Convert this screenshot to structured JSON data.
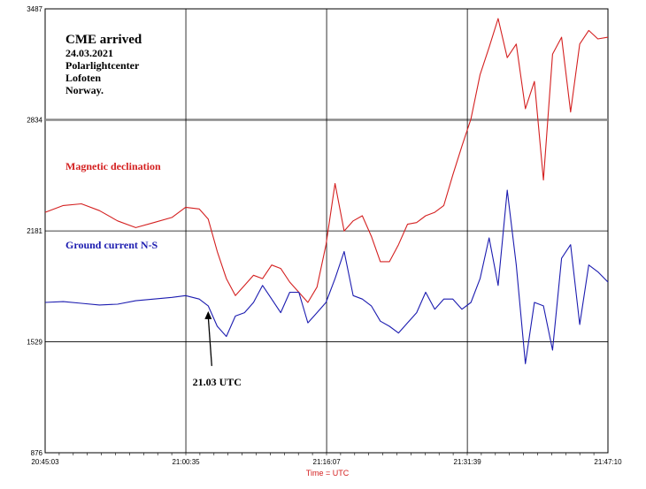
{
  "chart_data": {
    "type": "line",
    "title": "",
    "xlabel": "Time = UTC",
    "ylabel": "",
    "x_ticks": [
      "20:45:03",
      "21:00:35",
      "21:16:07",
      "21:31:39",
      "21:47:10"
    ],
    "x_tick_minutes": [
      0,
      15.533,
      31.067,
      46.6,
      62.117
    ],
    "y_ticks": [
      "3487",
      "2834",
      "2181",
      "1529",
      "876"
    ],
    "y_tick_values": [
      3487,
      2834,
      2181,
      1529,
      876
    ],
    "ylim": [
      876,
      3487
    ],
    "xlim_minutes": [
      0,
      62.117
    ],
    "grid": true,
    "annotations": {
      "event_lines": [
        "CME arrived",
        "24.03.2021",
        "Polarlightcenter",
        "Lofoten",
        "Norway."
      ],
      "red_label": "Magnetic declination",
      "blue_label": "Ground current N-S",
      "arrow_label": "21.03 UTC",
      "arrow_time_minutes": 18.0
    },
    "colors": {
      "magnetic_declination": "#d42020",
      "ground_current": "#1c1cb0",
      "grid": "#000000",
      "reference_line": "#8a8a8a",
      "axis_text": "#000000",
      "xlabel": "#d42020"
    },
    "series": [
      {
        "name": "Magnetic declination",
        "x_minutes": [
          0,
          2,
          4,
          6,
          8,
          10,
          12,
          14,
          15.5,
          17,
          18,
          19,
          20,
          21,
          22,
          23,
          24,
          25,
          26,
          27,
          28,
          29,
          30,
          31,
          32,
          33,
          34,
          35,
          36,
          37,
          38,
          39,
          40,
          41,
          42,
          43,
          44,
          45,
          46,
          47,
          48,
          49,
          50,
          51,
          52,
          53,
          54,
          55,
          56,
          57,
          58,
          59,
          60,
          61,
          62.117
        ],
        "values": [
          2290,
          2330,
          2340,
          2300,
          2240,
          2200,
          2230,
          2260,
          2320,
          2310,
          2250,
          2060,
          1900,
          1800,
          1860,
          1920,
          1900,
          1980,
          1960,
          1880,
          1820,
          1760,
          1850,
          2100,
          2460,
          2180,
          2240,
          2270,
          2150,
          2000,
          2000,
          2100,
          2220,
          2230,
          2270,
          2290,
          2330,
          2510,
          2680,
          2840,
          3100,
          3260,
          3430,
          3200,
          3280,
          2900,
          3060,
          2480,
          3220,
          3320,
          2880,
          3280,
          3360,
          3310,
          3320
        ]
      },
      {
        "name": "Ground current N-S",
        "x_minutes": [
          0,
          2,
          4,
          6,
          8,
          10,
          12,
          14,
          15.5,
          17,
          18,
          19,
          20,
          21,
          22,
          23,
          24,
          25,
          26,
          27,
          28,
          29,
          30,
          31,
          32,
          33,
          34,
          35,
          36,
          37,
          38,
          39,
          40,
          41,
          42,
          43,
          44,
          45,
          46,
          47,
          48,
          49,
          50,
          51,
          52,
          53,
          54,
          55,
          56,
          57,
          58,
          59,
          60,
          61,
          62.117
        ],
        "values": [
          1760,
          1765,
          1755,
          1745,
          1750,
          1770,
          1780,
          1790,
          1800,
          1780,
          1740,
          1620,
          1560,
          1680,
          1700,
          1760,
          1860,
          1780,
          1700,
          1820,
          1820,
          1640,
          1700,
          1760,
          1900,
          2060,
          1800,
          1780,
          1740,
          1650,
          1620,
          1580,
          1640,
          1700,
          1820,
          1720,
          1780,
          1780,
          1720,
          1760,
          1900,
          2140,
          1860,
          2420,
          1980,
          1400,
          1760,
          1740,
          1480,
          2020,
          2100,
          1630,
          1980,
          1940,
          1880
        ]
      }
    ]
  }
}
